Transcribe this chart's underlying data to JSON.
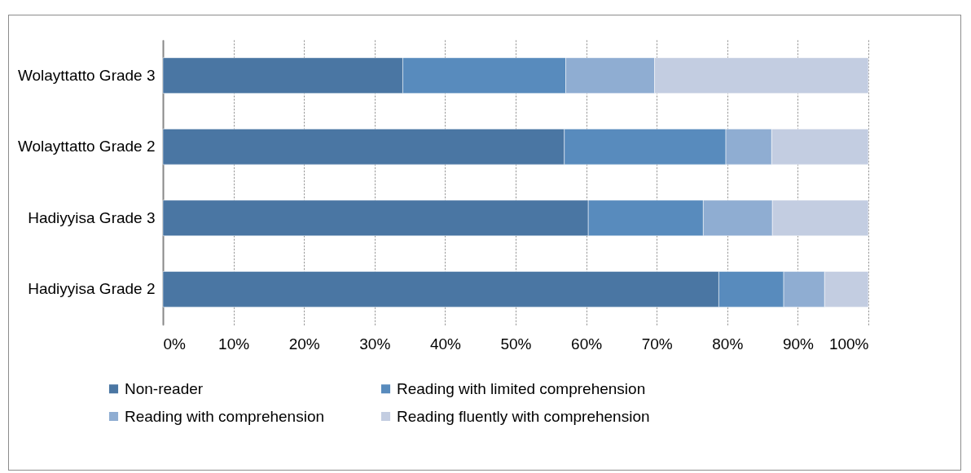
{
  "chart_data": {
    "type": "bar",
    "orientation": "horizontal",
    "stacked": true,
    "categories": [
      "Wolayttatto Grade 3",
      "Wolayttatto Grade 2",
      "Hadiyyisa Grade 3",
      "Hadiyyisa Grade 2"
    ],
    "series": [
      {
        "name": "Non-reader",
        "color": "#4a76a3",
        "values": [
          34.0,
          56.9,
          60.3,
          78.8
        ]
      },
      {
        "name": "Reading with limited comprehension",
        "color": "#588bbd",
        "values": [
          23.1,
          22.9,
          16.3,
          9.2
        ]
      },
      {
        "name": "Reading with comprehension",
        "color": "#8fadd2",
        "values": [
          12.6,
          6.5,
          9.8,
          5.8
        ]
      },
      {
        "name": "Reading fluently with comprehension",
        "color": "#c3cde1",
        "values": [
          30.3,
          13.7,
          13.6,
          6.2
        ]
      }
    ],
    "xlim": [
      0,
      100
    ],
    "xticks": [
      {
        "value": 0,
        "label": "0%"
      },
      {
        "value": 10,
        "label": "10%"
      },
      {
        "value": 20,
        "label": "20%"
      },
      {
        "value": 30,
        "label": "30%"
      },
      {
        "value": 40,
        "label": "40%"
      },
      {
        "value": 50,
        "label": "50%"
      },
      {
        "value": 60,
        "label": "60%"
      },
      {
        "value": 70,
        "label": "70%"
      },
      {
        "value": 80,
        "label": "80%"
      },
      {
        "value": 90,
        "label": "90%"
      },
      {
        "value": 100,
        "label": "100%"
      }
    ],
    "grid": "x",
    "legend": "bottom"
  }
}
